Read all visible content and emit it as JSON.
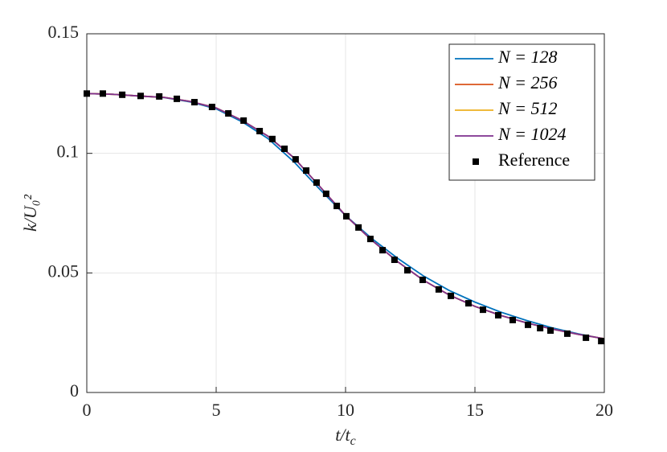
{
  "chart_data": {
    "type": "line",
    "xlabel": "t/t",
    "xlabel_sub": "c",
    "ylabel": "k/U₀²",
    "xlim": [
      0,
      20
    ],
    "ylim": [
      0,
      0.15
    ],
    "xticks": [
      0,
      5,
      10,
      15,
      20
    ],
    "yticks": [
      0,
      0.05,
      0.1,
      0.15
    ],
    "grid": true,
    "legend": "northeast",
    "x": [
      0,
      1,
      2,
      3,
      4,
      5,
      6,
      7,
      8,
      9,
      10,
      11,
      12,
      13,
      14,
      15,
      16,
      17,
      18,
      19,
      20
    ],
    "series": [
      {
        "name": "N = 128",
        "color": "#0072BD",
        "values": [
          0.125,
          0.1247,
          0.124,
          0.1233,
          0.1215,
          0.1186,
          0.1132,
          0.1062,
          0.0965,
          0.085,
          0.074,
          0.0645,
          0.0562,
          0.0488,
          0.0427,
          0.0378,
          0.0336,
          0.0301,
          0.027,
          0.0245,
          0.0224
        ]
      },
      {
        "name": "N = 256",
        "color": "#D95319",
        "values": [
          0.125,
          0.1247,
          0.124,
          0.1234,
          0.1217,
          0.119,
          0.1138,
          0.1072,
          0.0982,
          0.0862,
          0.074,
          0.0638,
          0.0548,
          0.047,
          0.0408,
          0.036,
          0.0322,
          0.0291,
          0.0265,
          0.0243,
          0.0225
        ]
      },
      {
        "name": "N = 512",
        "color": "#EDB120",
        "values": [
          0.125,
          0.1247,
          0.124,
          0.1234,
          0.1217,
          0.119,
          0.1138,
          0.1072,
          0.0982,
          0.0862,
          0.074,
          0.0638,
          0.0548,
          0.047,
          0.0408,
          0.036,
          0.0322,
          0.0291,
          0.0265,
          0.0243,
          0.0225
        ]
      },
      {
        "name": "N = 1024",
        "color": "#7E2F8E",
        "values": [
          0.125,
          0.1247,
          0.124,
          0.1234,
          0.1217,
          0.119,
          0.1138,
          0.1072,
          0.0982,
          0.0862,
          0.074,
          0.0638,
          0.0548,
          0.047,
          0.0408,
          0.036,
          0.0322,
          0.0291,
          0.0265,
          0.0243,
          0.0225
        ]
      },
      {
        "name": "Reference",
        "color": "#000000",
        "marker": "square",
        "x": [
          0,
          0.62,
          1.37,
          2.08,
          2.8,
          3.48,
          4.16,
          4.84,
          5.47,
          6.06,
          6.68,
          7.17,
          7.64,
          8.07,
          8.48,
          8.88,
          9.25,
          9.66,
          10.03,
          10.5,
          10.96,
          11.43,
          11.89,
          12.39,
          12.98,
          13.6,
          14.07,
          14.75,
          15.31,
          15.9,
          16.46,
          17.05,
          17.52,
          17.92,
          18.57,
          19.29,
          19.88
        ],
        "values": [
          0.125,
          0.125,
          0.1245,
          0.124,
          0.1238,
          0.1228,
          0.1214,
          0.1194,
          0.1167,
          0.1137,
          0.1093,
          0.106,
          0.1019,
          0.0975,
          0.0928,
          0.0878,
          0.0831,
          0.078,
          0.0737,
          0.069,
          0.0642,
          0.0595,
          0.0555,
          0.0511,
          0.0471,
          0.0431,
          0.0404,
          0.0373,
          0.0346,
          0.0323,
          0.0303,
          0.0283,
          0.0269,
          0.0259,
          0.0246,
          0.0229,
          0.0215
        ]
      }
    ]
  }
}
